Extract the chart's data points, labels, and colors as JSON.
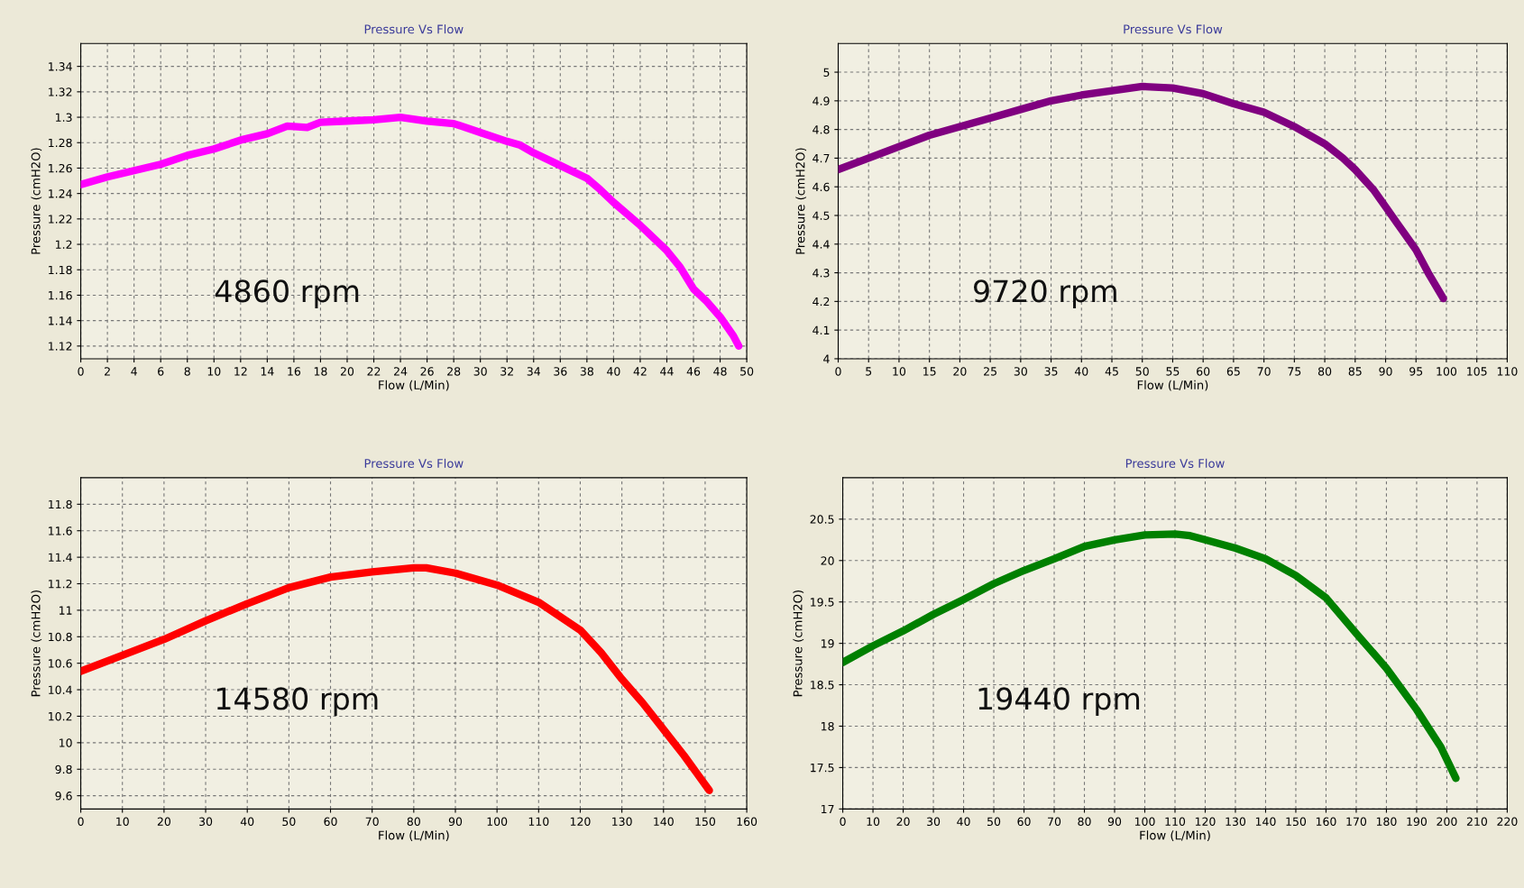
{
  "chart_data": [
    {
      "type": "line",
      "title": "Pressure Vs Flow",
      "xlabel": "Flow (L/Min)",
      "ylabel": "Pressure (cmH2O)",
      "annotations": [
        "4860 rpm"
      ],
      "grid": true,
      "marker": "none",
      "line_style": "solid",
      "xlim": [
        0,
        50
      ],
      "xticks": [
        0,
        2,
        4,
        6,
        8,
        10,
        12,
        14,
        16,
        18,
        20,
        22,
        24,
        26,
        28,
        30,
        32,
        34,
        36,
        38,
        40,
        42,
        44,
        46,
        48,
        50
      ],
      "ylim": [
        1.11,
        1.358
      ],
      "yticks": [
        1.12,
        1.14,
        1.16,
        1.18,
        1.2,
        1.22,
        1.24,
        1.26,
        1.28,
        1.3,
        1.32,
        1.34
      ],
      "series": [
        {
          "color": "#ff00ff",
          "x": [
            0,
            2,
            4,
            6,
            8,
            10,
            12,
            14,
            15.5,
            17,
            18,
            20,
            22,
            24,
            26,
            28,
            30,
            32,
            33,
            34,
            36,
            38,
            39,
            40,
            42,
            44,
            45,
            46,
            47,
            48,
            49,
            49.4
          ],
          "values": [
            1.247,
            1.253,
            1.258,
            1.263,
            1.27,
            1.275,
            1.282,
            1.287,
            1.293,
            1.292,
            1.296,
            1.297,
            1.298,
            1.3,
            1.297,
            1.295,
            1.288,
            1.281,
            1.278,
            1.272,
            1.262,
            1.252,
            1.243,
            1.233,
            1.215,
            1.195,
            1.182,
            1.165,
            1.155,
            1.143,
            1.128,
            1.12
          ]
        }
      ]
    },
    {
      "type": "line",
      "title": "Pressure Vs Flow",
      "xlabel": "Flow (L/Min)",
      "ylabel": "Pressure (cmH2O)",
      "annotations": [
        "9720 rpm"
      ],
      "grid": true,
      "marker": "none",
      "line_style": "solid",
      "xlim": [
        0,
        110
      ],
      "xticks": [
        0,
        5,
        10,
        15,
        20,
        25,
        30,
        35,
        40,
        45,
        50,
        55,
        60,
        65,
        70,
        75,
        80,
        85,
        90,
        95,
        100,
        105,
        110
      ],
      "ylim": [
        4,
        5.1
      ],
      "yticks": [
        4,
        4.1,
        4.2,
        4.3,
        4.4,
        4.5,
        4.6,
        4.7,
        4.8,
        4.9,
        5
      ],
      "series": [
        {
          "color": "#800080",
          "x": [
            0,
            5,
            10,
            15,
            20,
            25,
            30,
            35,
            40,
            45,
            50,
            55,
            60,
            65,
            70,
            75,
            80,
            83,
            85,
            88,
            90,
            92,
            95,
            97,
            99.5
          ],
          "values": [
            4.66,
            4.7,
            4.74,
            4.78,
            4.81,
            4.84,
            4.87,
            4.9,
            4.92,
            4.935,
            4.95,
            4.945,
            4.925,
            4.89,
            4.86,
            4.81,
            4.75,
            4.7,
            4.66,
            4.59,
            4.53,
            4.47,
            4.38,
            4.3,
            4.21
          ]
        }
      ]
    },
    {
      "type": "line",
      "title": "Pressure Vs Flow",
      "xlabel": "Flow (L/Min)",
      "ylabel": "Pressure (cmH2O)",
      "annotations": [
        "14580 rpm"
      ],
      "grid": true,
      "marker": "none",
      "line_style": "solid",
      "xlim": [
        0,
        160
      ],
      "xticks": [
        0,
        10,
        20,
        30,
        40,
        50,
        60,
        70,
        80,
        90,
        100,
        110,
        120,
        130,
        140,
        150,
        160
      ],
      "ylim": [
        9.5,
        12.0
      ],
      "yticks": [
        9.6,
        9.8,
        10,
        10.2,
        10.4,
        10.6,
        10.8,
        11,
        11.2,
        11.4,
        11.6,
        11.8
      ],
      "series": [
        {
          "color": "#ff0000",
          "x": [
            0,
            10,
            20,
            30,
            40,
            50,
            60,
            70,
            80,
            83,
            90,
            100,
            110,
            120,
            125,
            130,
            135,
            140,
            145,
            148,
            151
          ],
          "values": [
            10.54,
            10.66,
            10.78,
            10.92,
            11.05,
            11.17,
            11.25,
            11.29,
            11.32,
            11.32,
            11.28,
            11.19,
            11.06,
            10.85,
            10.68,
            10.48,
            10.3,
            10.1,
            9.9,
            9.77,
            9.64
          ]
        }
      ]
    },
    {
      "type": "line",
      "title": "Pressure Vs Flow",
      "xlabel": "Flow (L/Min)",
      "ylabel": "Pressure (cmH2O)",
      "annotations": [
        "19440 rpm"
      ],
      "grid": true,
      "marker": "none",
      "line_style": "solid",
      "xlim": [
        0,
        220
      ],
      "xticks": [
        0,
        10,
        20,
        30,
        40,
        50,
        60,
        70,
        80,
        90,
        100,
        110,
        120,
        130,
        140,
        150,
        160,
        170,
        180,
        190,
        200,
        210,
        220
      ],
      "ylim": [
        17,
        21
      ],
      "yticks": [
        17,
        17.5,
        18,
        18.5,
        19,
        19.5,
        20,
        20.5
      ],
      "series": [
        {
          "color": "#008000",
          "x": [
            0,
            10,
            20,
            30,
            40,
            50,
            60,
            70,
            80,
            90,
            100,
            110,
            115,
            120,
            130,
            140,
            150,
            160,
            170,
            180,
            190,
            198,
            203
          ],
          "values": [
            18.77,
            18.97,
            19.15,
            19.35,
            19.53,
            19.72,
            19.88,
            20.02,
            20.17,
            20.25,
            20.31,
            20.32,
            20.3,
            20.25,
            20.15,
            20.02,
            19.82,
            19.55,
            19.12,
            18.7,
            18.2,
            17.75,
            17.37
          ]
        }
      ]
    }
  ]
}
